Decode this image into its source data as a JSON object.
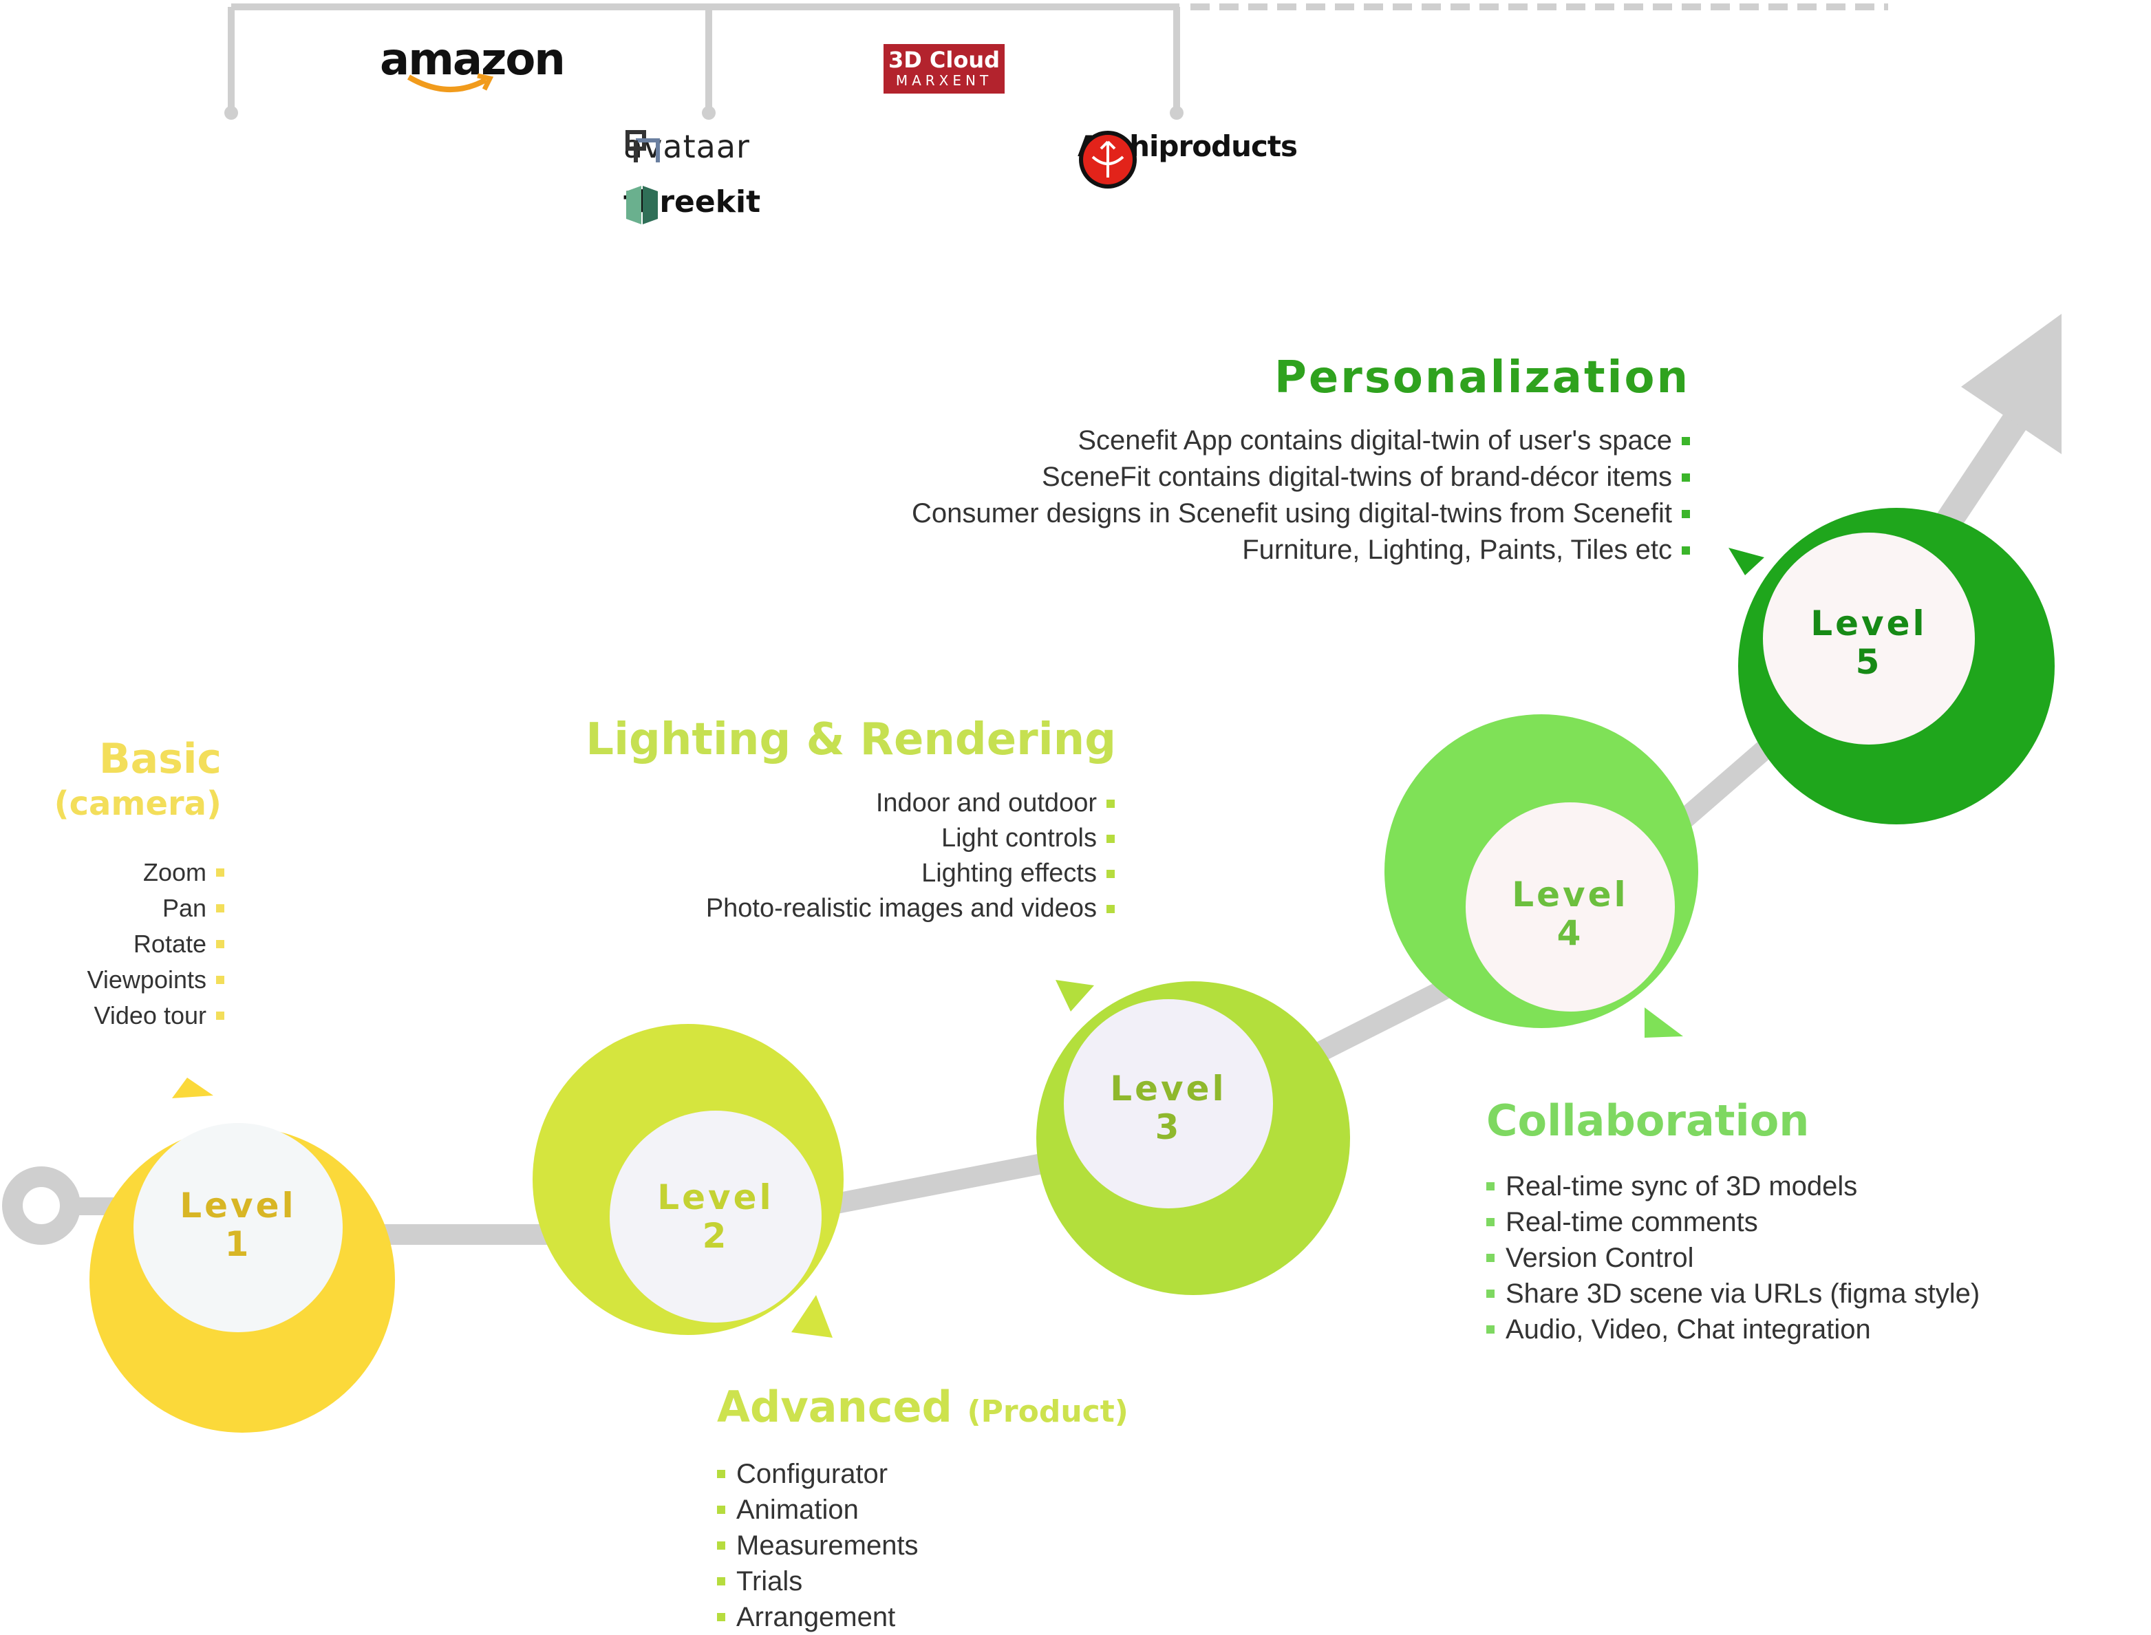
{
  "logos": {
    "amazon": "amazon",
    "cloud3d_line1": "3D Cloud",
    "cloud3d_line2": "MARXENT",
    "avataar": "avataar",
    "threekit": "threekit",
    "archiproducts": "Archiproducts"
  },
  "levels": [
    {
      "label": "Level",
      "number": "1",
      "color": "#fbd93a",
      "text_color": "#d8b625"
    },
    {
      "label": "Level",
      "number": "2",
      "color": "#d5e53e",
      "text_color": "#c4d233"
    },
    {
      "label": "Level",
      "number": "3",
      "color": "#b3df3c",
      "text_color": "#8fb82d"
    },
    {
      "label": "Level",
      "number": "4",
      "color": "#7fe157",
      "text_color": "#6cbf3e"
    },
    {
      "label": "Level",
      "number": "5",
      "color": "#1fa61c",
      "text_color": "#178a16"
    }
  ],
  "sections": {
    "basic": {
      "title": "Basic",
      "subtitle": "(camera)",
      "items": [
        "Zoom",
        "Pan",
        "Rotate",
        "Viewpoints",
        "Video tour"
      ]
    },
    "lighting": {
      "title": "Lighting & Rendering",
      "items": [
        "Indoor and outdoor",
        "Light controls",
        "Lighting effects",
        "Photo-realistic images and videos"
      ]
    },
    "advanced": {
      "title": "Advanced",
      "subtitle": "(Product)",
      "items": [
        "Configurator",
        "Animation",
        "Measurements",
        "Trials",
        "Arrangement"
      ]
    },
    "collaboration": {
      "title": "Collaboration",
      "items": [
        "Real-time sync of 3D models",
        "Real-time comments",
        "Version Control",
        "Share 3D scene via URLs (figma style)",
        "Audio, Video, Chat integration"
      ]
    },
    "personalization": {
      "title": "Personalization",
      "items": [
        "Scenefit App contains digital-twin of user's space",
        "SceneFit contains digital-twins of brand-décor items",
        "Consumer designs in Scenefit using digital-twins from Scenefit",
        "Furniture, Lighting, Paints, Tiles etc"
      ]
    }
  },
  "colors": {
    "connector": "#c8c8c8",
    "inner_circle": "#f4f4f7"
  }
}
